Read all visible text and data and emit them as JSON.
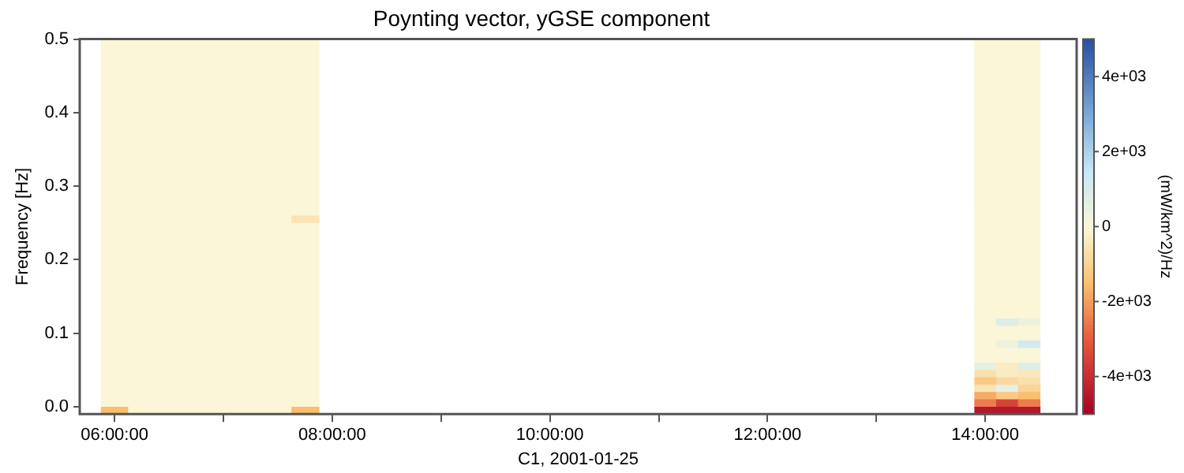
{
  "chart_data": {
    "type": "heatmap",
    "title": "Poynting vector, yGSE component",
    "xlabel": "C1, 2001-01-25",
    "ylabel": "Frequency [Hz]",
    "clabel": "(mW/km^2)/Hz",
    "x": [
      6,
      6.25,
      6.5,
      6.75,
      7,
      7.25,
      7.5,
      7.75,
      8,
      13.8,
      14,
      14.2,
      14.4
    ],
    "xlim": [
      5.68,
      14.84
    ],
    "xticks": [
      {
        "value": 6,
        "label": "06:00:00"
      },
      {
        "value": 7,
        "label": null
      },
      {
        "value": 8,
        "label": "08:00:00"
      },
      {
        "value": 9,
        "label": null
      },
      {
        "value": 10,
        "label": "10:00:00"
      },
      {
        "value": 11,
        "label": null
      },
      {
        "value": 12,
        "label": "12:00:00"
      },
      {
        "value": 13,
        "label": null
      },
      {
        "value": 14,
        "label": "14:00:00"
      }
    ],
    "ylim": [
      -0.01,
      0.5
    ],
    "yticks": [
      {
        "value": 0,
        "label": "0.0"
      },
      0.1,
      0.2,
      0.3,
      0.4,
      0.5
    ],
    "clim": [
      -5000,
      5000
    ],
    "cticks": [
      {
        "value": -4000,
        "label": "-4e+03"
      },
      {
        "value": -2000,
        "label": "-2e+03"
      },
      0,
      {
        "value": 2000,
        "label": "2e+03"
      },
      {
        "value": 4000,
        "label": "4e+03"
      }
    ],
    "grid": false,
    "cells": [
      [
        0,
        0,
        0,
        0,
        0,
        0,
        0,
        0,
        null,
        null,
        0,
        0,
        0
      ],
      [
        0,
        0,
        0,
        0,
        0,
        0,
        0,
        0,
        null,
        null,
        0,
        0,
        0
      ],
      [
        0,
        0,
        0,
        0,
        0,
        0,
        0,
        0,
        null,
        null,
        0,
        0,
        0
      ],
      [
        0,
        0,
        0,
        0,
        0,
        0,
        0,
        0,
        null,
        null,
        0,
        0,
        0
      ],
      [
        0,
        0,
        0,
        0,
        0,
        0,
        0,
        0,
        null,
        null,
        0,
        0,
        0
      ],
      [
        0,
        0,
        0,
        0,
        0,
        0,
        0,
        0,
        null,
        null,
        0,
        0,
        0
      ],
      [
        0,
        0,
        0,
        0,
        0,
        0,
        0,
        0,
        null,
        null,
        0,
        0,
        0
      ],
      [
        0,
        0,
        0,
        0,
        0,
        0,
        0,
        0,
        null,
        null,
        0,
        0,
        0
      ],
      [
        0,
        0,
        0,
        0,
        0,
        0,
        0,
        0,
        null,
        null,
        0,
        0,
        0
      ],
      [
        0,
        0,
        0,
        0,
        0,
        0,
        0,
        0,
        null,
        null,
        0,
        0,
        0
      ],
      [
        0,
        0,
        0,
        0,
        0,
        0,
        0,
        0,
        null,
        null,
        0,
        0,
        0
      ],
      [
        0,
        0,
        0,
        0,
        0,
        0,
        0,
        0,
        null,
        null,
        0,
        0,
        0
      ],
      [
        0,
        0,
        0,
        0,
        0,
        0,
        0,
        0,
        null,
        null,
        0,
        0,
        0
      ],
      [
        0,
        0,
        0,
        0,
        0,
        0,
        0,
        0,
        null,
        null,
        0,
        0,
        0
      ],
      [
        0,
        0,
        0,
        0,
        0,
        0,
        0,
        0,
        null,
        null,
        0,
        0,
        0
      ],
      [
        0,
        0,
        0,
        0,
        0,
        0,
        0,
        0,
        null,
        null,
        0,
        0,
        0
      ],
      [
        0,
        0,
        0,
        0,
        0,
        0,
        0,
        0,
        null,
        null,
        0,
        0,
        0
      ],
      [
        0,
        0,
        0,
        0,
        0,
        0,
        0,
        0,
        null,
        null,
        0,
        0,
        0
      ],
      [
        0,
        0,
        0,
        0,
        0,
        0,
        0,
        0,
        null,
        null,
        0,
        0,
        0
      ],
      [
        0,
        0,
        0,
        0,
        0,
        0,
        0,
        0,
        null,
        null,
        0,
        0,
        0
      ],
      [
        0,
        0,
        0,
        0,
        0,
        0,
        0,
        0,
        null,
        null,
        0,
        0,
        0
      ],
      [
        0,
        0,
        0,
        0,
        0,
        0,
        0,
        0,
        null,
        null,
        0,
        0,
        0
      ],
      [
        0,
        0,
        0,
        0,
        0,
        0,
        0,
        0,
        null,
        null,
        0,
        0,
        0
      ],
      [
        0,
        0,
        0,
        0,
        0,
        0,
        0,
        0,
        null,
        null,
        0,
        0,
        0
      ],
      [
        0,
        0,
        0,
        0,
        0,
        0,
        0,
        -500,
        null,
        null,
        0,
        0,
        0
      ],
      [
        0,
        0,
        0,
        0,
        0,
        0,
        0,
        0,
        null,
        null,
        0,
        0,
        0
      ],
      [
        0,
        0,
        0,
        0,
        0,
        0,
        0,
        0,
        null,
        null,
        0,
        0,
        0
      ],
      [
        0,
        0,
        0,
        0,
        0,
        0,
        0,
        0,
        null,
        null,
        0,
        0,
        0
      ],
      [
        0,
        0,
        0,
        0,
        0,
        0,
        0,
        0,
        null,
        null,
        0,
        0,
        0
      ],
      [
        0,
        0,
        0,
        0,
        0,
        0,
        0,
        0,
        null,
        null,
        0,
        0,
        0
      ],
      [
        0,
        0,
        0,
        0,
        0,
        0,
        0,
        0,
        null,
        null,
        0,
        0,
        0
      ],
      [
        0,
        0,
        0,
        0,
        0,
        0,
        0,
        0,
        null,
        null,
        0,
        0,
        0
      ],
      [
        0,
        0,
        0,
        0,
        0,
        0,
        0,
        0,
        null,
        null,
        0,
        0,
        0
      ],
      [
        0,
        0,
        0,
        0,
        0,
        0,
        0,
        0,
        null,
        null,
        0,
        0,
        0
      ],
      [
        0,
        0,
        0,
        0,
        0,
        0,
        0,
        0,
        null,
        null,
        0,
        0,
        0
      ],
      [
        0,
        0,
        0,
        0,
        0,
        0,
        0,
        0,
        null,
        null,
        0,
        0,
        0
      ],
      [
        0,
        0,
        0,
        0,
        0,
        0,
        0,
        0,
        null,
        null,
        0,
        0,
        0
      ],
      [
        0,
        0,
        0,
        0,
        0,
        0,
        0,
        0,
        null,
        null,
        0,
        0,
        0
      ],
      [
        0,
        0,
        0,
        0,
        0,
        0,
        0,
        0,
        null,
        null,
        0,
        800,
        400
      ],
      [
        0,
        0,
        0,
        0,
        0,
        0,
        0,
        0,
        null,
        null,
        0,
        0,
        0
      ],
      [
        0,
        0,
        0,
        0,
        0,
        0,
        0,
        0,
        null,
        null,
        0,
        0,
        0
      ],
      [
        0,
        0,
        0,
        0,
        0,
        0,
        0,
        0,
        null,
        null,
        0,
        400,
        1200
      ],
      [
        0,
        0,
        0,
        0,
        0,
        0,
        0,
        0,
        null,
        null,
        0,
        0,
        0
      ],
      [
        0,
        0,
        0,
        0,
        0,
        0,
        0,
        0,
        null,
        null,
        0,
        0,
        0
      ],
      [
        0,
        0,
        0,
        0,
        0,
        0,
        0,
        0,
        null,
        null,
        600,
        -300,
        800
      ],
      [
        0,
        0,
        0,
        0,
        0,
        0,
        0,
        0,
        null,
        null,
        -600,
        -300,
        -400
      ],
      [
        0,
        0,
        0,
        0,
        0,
        0,
        0,
        0,
        null,
        null,
        -1200,
        -800,
        -600
      ],
      [
        0,
        0,
        0,
        0,
        0,
        0,
        0,
        0,
        null,
        null,
        -500,
        600,
        -900
      ],
      [
        0,
        0,
        0,
        0,
        0,
        0,
        0,
        0,
        null,
        null,
        -1800,
        -1200,
        -1500
      ],
      [
        0,
        0,
        0,
        0,
        0,
        0,
        0,
        0,
        null,
        null,
        -2500,
        -3500,
        -2500
      ],
      [
        -1500,
        0,
        0,
        0,
        0,
        0,
        0,
        -1500,
        null,
        null,
        -4500,
        -4500,
        -4500
      ]
    ]
  }
}
